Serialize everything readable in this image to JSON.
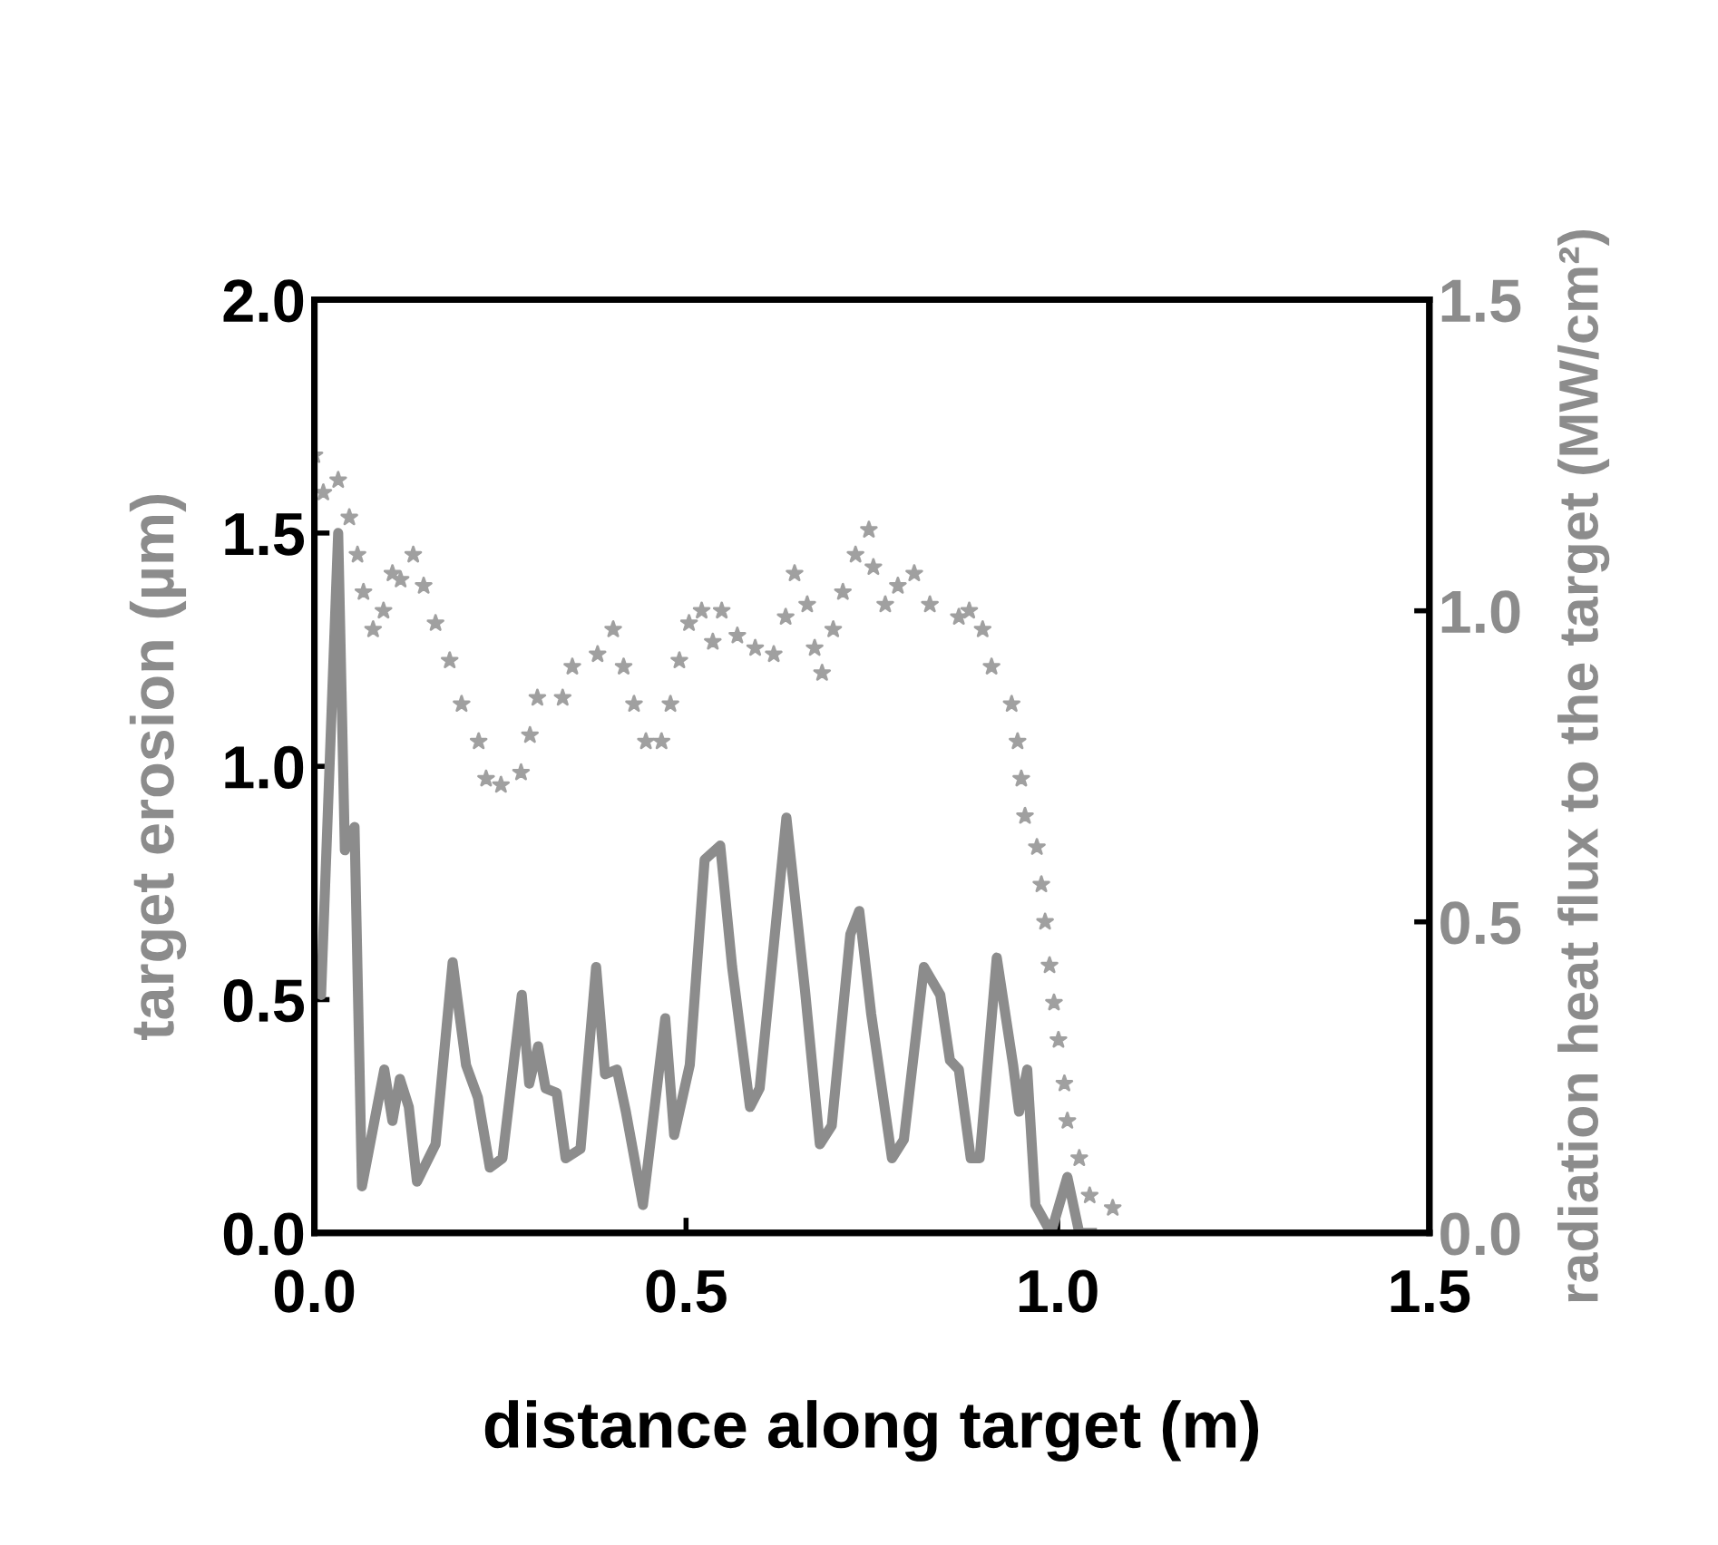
{
  "chart_data": {
    "type": "line",
    "xlabel": "distance along target (m)",
    "ylabel": "target erosion (µm)",
    "y2label": "radiation heat flux to the target (MW/cm²)",
    "xlim": [
      0,
      1.5
    ],
    "xticks": [
      {
        "value": 0,
        "label": "0.0"
      },
      {
        "value": 0.5,
        "label": "0.5"
      },
      {
        "value": 1.0,
        "label": "1.0"
      },
      {
        "value": 1.5,
        "label": "1.5"
      }
    ],
    "ylim": [
      0,
      2.0
    ],
    "yticks": [
      {
        "value": 0,
        "label": "0.0"
      },
      {
        "value": 0.5,
        "label": "0.5"
      },
      {
        "value": 1.0,
        "label": "1.0"
      },
      {
        "value": 1.5,
        "label": "1.5"
      },
      {
        "value": 2.0,
        "label": "2.0"
      }
    ],
    "y2lim": [
      0,
      1.5
    ],
    "y2ticks": [
      {
        "value": 0,
        "label": "0.0"
      },
      {
        "value": 0.5,
        "label": "0.5"
      },
      {
        "value": 1.0,
        "label": "1.0"
      },
      {
        "value": 1.5,
        "label": "1.5"
      }
    ],
    "grid": false,
    "legend": false,
    "series": [
      {
        "color": "#8c8c8c",
        "line_style": "solid",
        "x": [
          0.0,
          0.009,
          0.032,
          0.041,
          0.054,
          0.064,
          0.094,
          0.105,
          0.115,
          0.127,
          0.138,
          0.163,
          0.186,
          0.204,
          0.22,
          0.236,
          0.253,
          0.279,
          0.289,
          0.301,
          0.311,
          0.326,
          0.338,
          0.358,
          0.379,
          0.391,
          0.407,
          0.419,
          0.442,
          0.472,
          0.484,
          0.505,
          0.525,
          0.546,
          0.562,
          0.586,
          0.599,
          0.635,
          0.66,
          0.68,
          0.696,
          0.721,
          0.733,
          0.749,
          0.777,
          0.793,
          0.82,
          0.842,
          0.855,
          0.867,
          0.883,
          0.895,
          0.918,
          0.94,
          0.948,
          0.959,
          0.97,
          0.991,
          1.013,
          1.029,
          1.046
        ],
        "values": [
          0.57,
          0.51,
          1.5,
          0.82,
          0.87,
          0.1,
          0.35,
          0.24,
          0.33,
          0.27,
          0.11,
          0.19,
          0.58,
          0.36,
          0.29,
          0.14,
          0.16,
          0.51,
          0.32,
          0.4,
          0.31,
          0.3,
          0.16,
          0.18,
          0.57,
          0.34,
          0.35,
          0.26,
          0.06,
          0.46,
          0.21,
          0.36,
          0.8,
          0.83,
          0.57,
          0.27,
          0.31,
          0.89,
          0.52,
          0.19,
          0.23,
          0.64,
          0.69,
          0.47,
          0.16,
          0.2,
          0.57,
          0.51,
          0.37,
          0.35,
          0.16,
          0.16,
          0.59,
          0.36,
          0.26,
          0.35,
          0.06,
          0.0,
          0.12,
          0.0,
          0.0
        ]
      },
      {
        "type": "scatter",
        "axis": "y2",
        "color": "#a0a0a0",
        "marker": "star",
        "x": [
          0.0,
          0.012,
          0.032,
          0.047,
          0.058,
          0.066,
          0.079,
          0.093,
          0.105,
          0.116,
          0.133,
          0.147,
          0.163,
          0.182,
          0.198,
          0.221,
          0.231,
          0.251,
          0.278,
          0.29,
          0.3,
          0.334,
          0.347,
          0.381,
          0.402,
          0.416,
          0.43,
          0.446,
          0.467,
          0.479,
          0.491,
          0.504,
          0.521,
          0.536,
          0.548,
          0.569,
          0.593,
          0.618,
          0.634,
          0.646,
          0.663,
          0.673,
          0.683,
          0.698,
          0.711,
          0.728,
          0.746,
          0.752,
          0.768,
          0.785,
          0.807,
          0.828,
          0.867,
          0.881,
          0.899,
          0.911,
          0.938,
          0.946,
          0.951,
          0.956,
          0.972,
          0.978,
          0.983,
          0.989,
          0.995,
          1.001,
          1.009,
          1.013,
          1.029,
          1.043,
          1.074
        ],
        "values": [
          1.25,
          1.19,
          1.21,
          1.15,
          1.09,
          1.03,
          0.97,
          1.0,
          1.06,
          1.05,
          1.09,
          1.04,
          0.98,
          0.92,
          0.85,
          0.79,
          0.73,
          0.72,
          0.74,
          0.8,
          0.86,
          0.86,
          0.91,
          0.93,
          0.97,
          0.91,
          0.85,
          0.79,
          0.79,
          0.85,
          0.92,
          0.98,
          1.0,
          0.95,
          1.0,
          0.96,
          0.94,
          0.93,
          0.99,
          1.06,
          1.01,
          0.94,
          0.9,
          0.97,
          1.03,
          1.09,
          1.13,
          1.07,
          1.01,
          1.04,
          1.06,
          1.01,
          0.99,
          1.0,
          0.97,
          0.91,
          0.85,
          0.79,
          0.73,
          0.67,
          0.62,
          0.56,
          0.5,
          0.43,
          0.37,
          0.31,
          0.24,
          0.18,
          0.12,
          0.06,
          0.04
        ]
      }
    ]
  }
}
